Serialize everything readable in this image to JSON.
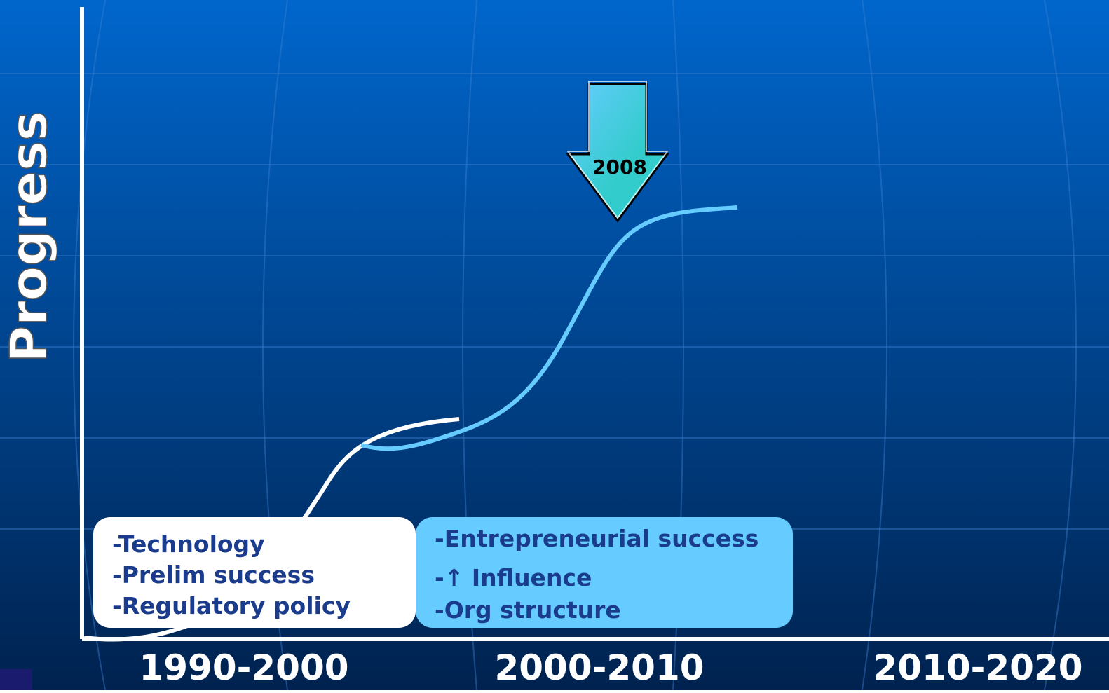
{
  "axis_label": "Progress",
  "periods": [
    "1990-2000",
    "2000-2010",
    "2010-2020"
  ],
  "marker": "2008",
  "boxes": [
    {
      "lines": [
        "-Technology",
        "-Prelim success",
        "-Regulatory policy"
      ]
    },
    {
      "lines": [
        "-Entrepreneurial success",
        "-↑ Influence",
        "-Org structure"
      ]
    }
  ]
}
